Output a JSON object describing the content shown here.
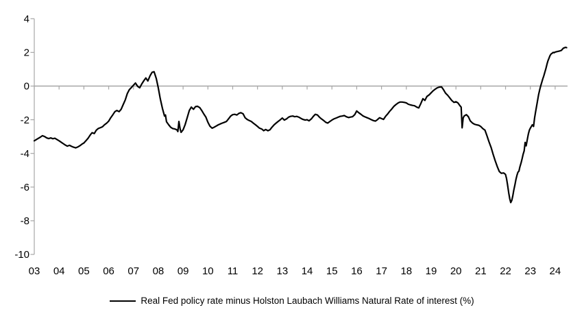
{
  "colors": {
    "line": "#000000",
    "axis": "#a6a6a6",
    "text": "#000000",
    "background": "#ffffff"
  },
  "legend": {
    "label": "Real Fed policy rate minus Holston Laubach Williams Natural Rate of interest (%)"
  },
  "chart_data": {
    "type": "line",
    "title": "",
    "xlabel": "",
    "ylabel": "",
    "xlim": [
      2003,
      2024.5
    ],
    "ylim": [
      -10,
      4
    ],
    "grid": "zero-line-only",
    "legend_position": "bottom-center",
    "x_tick_labels": [
      "03",
      "04",
      "05",
      "06",
      "07",
      "08",
      "09",
      "10",
      "11",
      "12",
      "13",
      "14",
      "15",
      "16",
      "17",
      "18",
      "19",
      "20",
      "21",
      "22",
      "23",
      "24"
    ],
    "y_ticks": [
      4,
      2,
      0,
      -2,
      -4,
      -6,
      -8,
      -10
    ],
    "series": [
      {
        "name": "Real Fed policy rate minus Holston Laubach Williams Natural Rate of interest (%)",
        "color": "#000000",
        "points": [
          [
            2003.0,
            -3.25
          ],
          [
            2003.08,
            -3.18
          ],
          [
            2003.17,
            -3.1
          ],
          [
            2003.25,
            -3.03
          ],
          [
            2003.33,
            -2.95
          ],
          [
            2003.42,
            -3.0
          ],
          [
            2003.5,
            -3.08
          ],
          [
            2003.58,
            -3.12
          ],
          [
            2003.67,
            -3.08
          ],
          [
            2003.75,
            -3.13
          ],
          [
            2003.83,
            -3.1
          ],
          [
            2003.92,
            -3.18
          ],
          [
            2004.0,
            -3.25
          ],
          [
            2004.08,
            -3.33
          ],
          [
            2004.17,
            -3.42
          ],
          [
            2004.25,
            -3.5
          ],
          [
            2004.33,
            -3.57
          ],
          [
            2004.42,
            -3.52
          ],
          [
            2004.5,
            -3.58
          ],
          [
            2004.58,
            -3.63
          ],
          [
            2004.67,
            -3.67
          ],
          [
            2004.75,
            -3.62
          ],
          [
            2004.83,
            -3.55
          ],
          [
            2004.92,
            -3.45
          ],
          [
            2005.0,
            -3.38
          ],
          [
            2005.08,
            -3.25
          ],
          [
            2005.17,
            -3.1
          ],
          [
            2005.25,
            -2.92
          ],
          [
            2005.33,
            -2.77
          ],
          [
            2005.42,
            -2.82
          ],
          [
            2005.5,
            -2.62
          ],
          [
            2005.58,
            -2.52
          ],
          [
            2005.67,
            -2.47
          ],
          [
            2005.75,
            -2.42
          ],
          [
            2005.83,
            -2.3
          ],
          [
            2005.92,
            -2.2
          ],
          [
            2006.0,
            -2.08
          ],
          [
            2006.08,
            -1.88
          ],
          [
            2006.17,
            -1.7
          ],
          [
            2006.25,
            -1.52
          ],
          [
            2006.33,
            -1.45
          ],
          [
            2006.42,
            -1.52
          ],
          [
            2006.5,
            -1.38
          ],
          [
            2006.58,
            -1.12
          ],
          [
            2006.67,
            -0.82
          ],
          [
            2006.75,
            -0.45
          ],
          [
            2006.83,
            -0.22
          ],
          [
            2006.92,
            -0.08
          ],
          [
            2007.0,
            0.05
          ],
          [
            2007.08,
            0.18
          ],
          [
            2007.17,
            -0.02
          ],
          [
            2007.25,
            -0.1
          ],
          [
            2007.33,
            0.12
          ],
          [
            2007.42,
            0.32
          ],
          [
            2007.5,
            0.48
          ],
          [
            2007.58,
            0.3
          ],
          [
            2007.67,
            0.62
          ],
          [
            2007.75,
            0.82
          ],
          [
            2007.83,
            0.85
          ],
          [
            2007.92,
            0.45
          ],
          [
            2008.0,
            -0.1
          ],
          [
            2008.08,
            -0.75
          ],
          [
            2008.17,
            -1.35
          ],
          [
            2008.25,
            -1.78
          ],
          [
            2008.29,
            -1.72
          ],
          [
            2008.33,
            -2.12
          ],
          [
            2008.42,
            -2.3
          ],
          [
            2008.5,
            -2.45
          ],
          [
            2008.58,
            -2.52
          ],
          [
            2008.67,
            -2.55
          ],
          [
            2008.75,
            -2.6
          ],
          [
            2008.79,
            -2.7
          ],
          [
            2008.83,
            -2.1
          ],
          [
            2008.88,
            -2.55
          ],
          [
            2008.92,
            -2.75
          ],
          [
            2009.0,
            -2.6
          ],
          [
            2009.08,
            -2.3
          ],
          [
            2009.17,
            -1.85
          ],
          [
            2009.25,
            -1.45
          ],
          [
            2009.33,
            -1.25
          ],
          [
            2009.42,
            -1.38
          ],
          [
            2009.5,
            -1.22
          ],
          [
            2009.58,
            -1.2
          ],
          [
            2009.67,
            -1.28
          ],
          [
            2009.75,
            -1.45
          ],
          [
            2009.83,
            -1.65
          ],
          [
            2009.92,
            -1.85
          ],
          [
            2010.0,
            -2.15
          ],
          [
            2010.08,
            -2.38
          ],
          [
            2010.17,
            -2.5
          ],
          [
            2010.25,
            -2.45
          ],
          [
            2010.33,
            -2.38
          ],
          [
            2010.42,
            -2.3
          ],
          [
            2010.5,
            -2.25
          ],
          [
            2010.58,
            -2.2
          ],
          [
            2010.67,
            -2.15
          ],
          [
            2010.75,
            -2.1
          ],
          [
            2010.83,
            -1.95
          ],
          [
            2010.92,
            -1.78
          ],
          [
            2011.0,
            -1.7
          ],
          [
            2011.08,
            -1.68
          ],
          [
            2011.17,
            -1.72
          ],
          [
            2011.25,
            -1.62
          ],
          [
            2011.33,
            -1.58
          ],
          [
            2011.42,
            -1.65
          ],
          [
            2011.5,
            -1.88
          ],
          [
            2011.58,
            -1.98
          ],
          [
            2011.67,
            -2.05
          ],
          [
            2011.75,
            -2.1
          ],
          [
            2011.83,
            -2.2
          ],
          [
            2011.92,
            -2.3
          ],
          [
            2012.0,
            -2.4
          ],
          [
            2012.08,
            -2.5
          ],
          [
            2012.17,
            -2.55
          ],
          [
            2012.25,
            -2.65
          ],
          [
            2012.33,
            -2.58
          ],
          [
            2012.42,
            -2.65
          ],
          [
            2012.5,
            -2.6
          ],
          [
            2012.58,
            -2.45
          ],
          [
            2012.67,
            -2.3
          ],
          [
            2012.75,
            -2.2
          ],
          [
            2012.83,
            -2.1
          ],
          [
            2012.92,
            -2.0
          ],
          [
            2013.0,
            -1.9
          ],
          [
            2013.08,
            -2.02
          ],
          [
            2013.17,
            -1.95
          ],
          [
            2013.25,
            -1.85
          ],
          [
            2013.33,
            -1.8
          ],
          [
            2013.42,
            -1.78
          ],
          [
            2013.5,
            -1.82
          ],
          [
            2013.58,
            -1.8
          ],
          [
            2013.67,
            -1.85
          ],
          [
            2013.75,
            -1.92
          ],
          [
            2013.83,
            -1.98
          ],
          [
            2013.92,
            -2.02
          ],
          [
            2014.0,
            -2.0
          ],
          [
            2014.08,
            -2.06
          ],
          [
            2014.17,
            -1.95
          ],
          [
            2014.25,
            -1.8
          ],
          [
            2014.33,
            -1.68
          ],
          [
            2014.42,
            -1.72
          ],
          [
            2014.5,
            -1.85
          ],
          [
            2014.58,
            -1.95
          ],
          [
            2014.67,
            -2.05
          ],
          [
            2014.75,
            -2.15
          ],
          [
            2014.83,
            -2.2
          ],
          [
            2014.92,
            -2.1
          ],
          [
            2015.0,
            -2.02
          ],
          [
            2015.08,
            -1.95
          ],
          [
            2015.17,
            -1.9
          ],
          [
            2015.25,
            -1.85
          ],
          [
            2015.33,
            -1.8
          ],
          [
            2015.42,
            -1.78
          ],
          [
            2015.5,
            -1.75
          ],
          [
            2015.58,
            -1.82
          ],
          [
            2015.67,
            -1.87
          ],
          [
            2015.75,
            -1.84
          ],
          [
            2015.83,
            -1.82
          ],
          [
            2015.92,
            -1.7
          ],
          [
            2016.0,
            -1.48
          ],
          [
            2016.08,
            -1.58
          ],
          [
            2016.17,
            -1.68
          ],
          [
            2016.25,
            -1.77
          ],
          [
            2016.33,
            -1.83
          ],
          [
            2016.42,
            -1.88
          ],
          [
            2016.5,
            -1.93
          ],
          [
            2016.58,
            -1.99
          ],
          [
            2016.67,
            -2.05
          ],
          [
            2016.75,
            -2.08
          ],
          [
            2016.83,
            -2.0
          ],
          [
            2016.92,
            -1.88
          ],
          [
            2017.0,
            -1.93
          ],
          [
            2017.08,
            -1.98
          ],
          [
            2017.17,
            -1.78
          ],
          [
            2017.25,
            -1.65
          ],
          [
            2017.33,
            -1.5
          ],
          [
            2017.42,
            -1.35
          ],
          [
            2017.5,
            -1.2
          ],
          [
            2017.58,
            -1.1
          ],
          [
            2017.67,
            -1.0
          ],
          [
            2017.75,
            -0.95
          ],
          [
            2017.83,
            -0.95
          ],
          [
            2017.92,
            -0.97
          ],
          [
            2018.0,
            -1.0
          ],
          [
            2018.08,
            -1.08
          ],
          [
            2018.17,
            -1.12
          ],
          [
            2018.25,
            -1.15
          ],
          [
            2018.33,
            -1.17
          ],
          [
            2018.42,
            -1.25
          ],
          [
            2018.5,
            -1.3
          ],
          [
            2018.58,
            -1.05
          ],
          [
            2018.67,
            -0.75
          ],
          [
            2018.75,
            -0.85
          ],
          [
            2018.83,
            -0.62
          ],
          [
            2018.92,
            -0.52
          ],
          [
            2019.0,
            -0.4
          ],
          [
            2019.08,
            -0.28
          ],
          [
            2019.17,
            -0.18
          ],
          [
            2019.25,
            -0.1
          ],
          [
            2019.33,
            -0.06
          ],
          [
            2019.42,
            -0.05
          ],
          [
            2019.5,
            -0.22
          ],
          [
            2019.58,
            -0.42
          ],
          [
            2019.67,
            -0.55
          ],
          [
            2019.75,
            -0.7
          ],
          [
            2019.83,
            -0.85
          ],
          [
            2019.92,
            -0.97
          ],
          [
            2020.0,
            -0.93
          ],
          [
            2020.08,
            -1.0
          ],
          [
            2020.17,
            -1.18
          ],
          [
            2020.21,
            -1.25
          ],
          [
            2020.25,
            -2.48
          ],
          [
            2020.29,
            -1.9
          ],
          [
            2020.33,
            -1.78
          ],
          [
            2020.42,
            -1.7
          ],
          [
            2020.5,
            -1.82
          ],
          [
            2020.58,
            -2.07
          ],
          [
            2020.67,
            -2.2
          ],
          [
            2020.75,
            -2.27
          ],
          [
            2020.83,
            -2.3
          ],
          [
            2020.92,
            -2.33
          ],
          [
            2021.0,
            -2.4
          ],
          [
            2021.08,
            -2.52
          ],
          [
            2021.17,
            -2.62
          ],
          [
            2021.25,
            -2.95
          ],
          [
            2021.33,
            -3.3
          ],
          [
            2021.42,
            -3.65
          ],
          [
            2021.5,
            -4.05
          ],
          [
            2021.58,
            -4.42
          ],
          [
            2021.67,
            -4.8
          ],
          [
            2021.75,
            -5.08
          ],
          [
            2021.83,
            -5.18
          ],
          [
            2021.92,
            -5.16
          ],
          [
            2021.96,
            -5.2
          ],
          [
            2022.0,
            -5.25
          ],
          [
            2022.04,
            -5.5
          ],
          [
            2022.08,
            -5.85
          ],
          [
            2022.13,
            -6.35
          ],
          [
            2022.17,
            -6.7
          ],
          [
            2022.21,
            -6.92
          ],
          [
            2022.25,
            -6.8
          ],
          [
            2022.29,
            -6.55
          ],
          [
            2022.33,
            -6.2
          ],
          [
            2022.38,
            -5.85
          ],
          [
            2022.42,
            -5.55
          ],
          [
            2022.46,
            -5.3
          ],
          [
            2022.5,
            -5.12
          ],
          [
            2022.54,
            -5.05
          ],
          [
            2022.58,
            -4.8
          ],
          [
            2022.63,
            -4.55
          ],
          [
            2022.67,
            -4.3
          ],
          [
            2022.71,
            -4.05
          ],
          [
            2022.75,
            -3.85
          ],
          [
            2022.79,
            -3.35
          ],
          [
            2022.83,
            -3.55
          ],
          [
            2022.88,
            -3.15
          ],
          [
            2022.92,
            -2.85
          ],
          [
            2022.96,
            -2.62
          ],
          [
            2023.0,
            -2.5
          ],
          [
            2023.04,
            -2.4
          ],
          [
            2023.08,
            -2.3
          ],
          [
            2023.13,
            -2.4
          ],
          [
            2023.17,
            -1.9
          ],
          [
            2023.21,
            -1.55
          ],
          [
            2023.25,
            -1.2
          ],
          [
            2023.29,
            -0.87
          ],
          [
            2023.33,
            -0.52
          ],
          [
            2023.38,
            -0.2
          ],
          [
            2023.42,
            0.02
          ],
          [
            2023.46,
            0.22
          ],
          [
            2023.5,
            0.42
          ],
          [
            2023.54,
            0.6
          ],
          [
            2023.58,
            0.8
          ],
          [
            2023.63,
            1.05
          ],
          [
            2023.67,
            1.3
          ],
          [
            2023.71,
            1.5
          ],
          [
            2023.75,
            1.65
          ],
          [
            2023.79,
            1.8
          ],
          [
            2023.83,
            1.9
          ],
          [
            2023.88,
            1.95
          ],
          [
            2023.92,
            2.0
          ],
          [
            2023.96,
            1.98
          ],
          [
            2024.0,
            2.02
          ],
          [
            2024.08,
            2.05
          ],
          [
            2024.17,
            2.08
          ],
          [
            2024.25,
            2.12
          ],
          [
            2024.33,
            2.25
          ],
          [
            2024.42,
            2.3
          ],
          [
            2024.46,
            2.28
          ]
        ]
      }
    ]
  }
}
